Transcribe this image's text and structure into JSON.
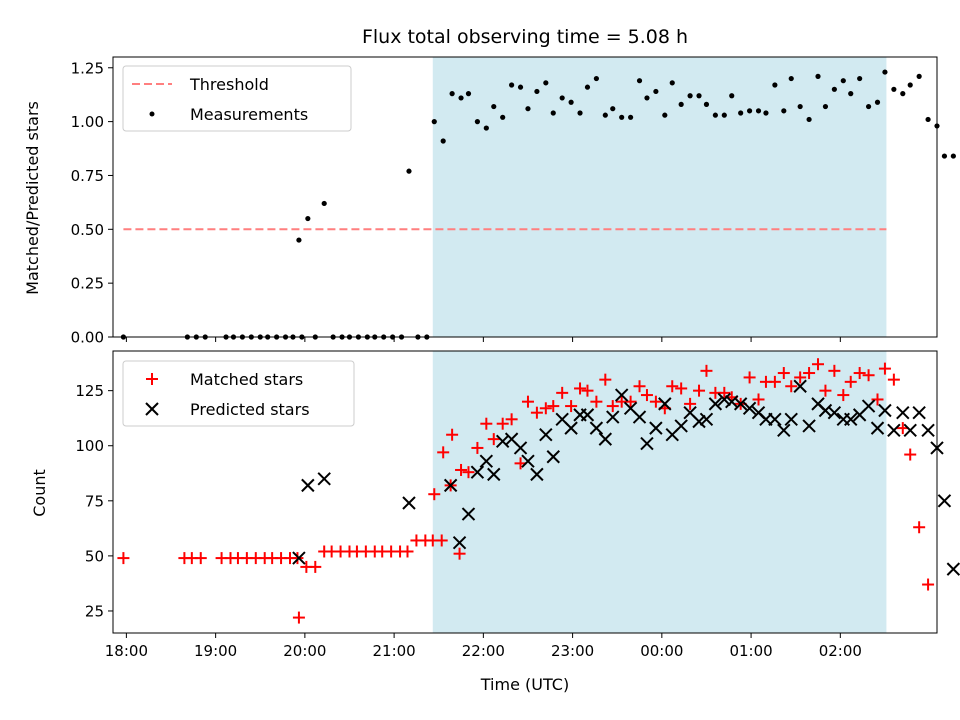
{
  "chart_data": [
    {
      "type": "scatter",
      "title": "Flux total observing time = 5.08 h",
      "xlabel": "",
      "ylabel": "Matched/Predicted stars",
      "x_range": [
        "17:51",
        "03:05"
      ],
      "ylim": [
        0,
        1.3
      ],
      "yticks": [
        "0.00",
        "0.25",
        "0.50",
        "0.75",
        "1.00",
        "1.25"
      ],
      "shaded_region": {
        "from": "21:26",
        "to": "02:31",
        "color": "#add8e6"
      },
      "legend_position": "top-left",
      "threshold": {
        "name": "Threshold",
        "value": 0.5,
        "from": "17:58",
        "to": "02:31",
        "color": "#ff7f7f"
      },
      "series": [
        {
          "name": "Measurements",
          "color": "#000000",
          "marker": "dot",
          "points": [
            [
              "17:58",
              0
            ],
            [
              "18:41",
              0
            ],
            [
              "18:47",
              0
            ],
            [
              "18:53",
              0
            ],
            [
              "19:07",
              0
            ],
            [
              "19:12",
              0
            ],
            [
              "19:18",
              0
            ],
            [
              "19:24",
              0
            ],
            [
              "19:30",
              0
            ],
            [
              "19:35",
              0
            ],
            [
              "19:41",
              0
            ],
            [
              "19:47",
              0
            ],
            [
              "19:52",
              0
            ],
            [
              "19:58",
              0
            ],
            [
              "19:56",
              0.45
            ],
            [
              "20:02",
              0.55
            ],
            [
              "20:07",
              0
            ],
            [
              "20:13",
              0.62
            ],
            [
              "20:19",
              0
            ],
            [
              "20:25",
              0
            ],
            [
              "20:30",
              0
            ],
            [
              "20:36",
              0
            ],
            [
              "20:42",
              0
            ],
            [
              "20:47",
              0
            ],
            [
              "20:53",
              0
            ],
            [
              "20:59",
              0
            ],
            [
              "21:05",
              0
            ],
            [
              "21:10",
              0.77
            ],
            [
              "21:16",
              0
            ],
            [
              "21:22",
              0
            ],
            [
              "21:27",
              1.0
            ],
            [
              "21:33",
              0.91
            ],
            [
              "21:39",
              1.13
            ],
            [
              "21:45",
              1.11
            ],
            [
              "21:50",
              1.13
            ],
            [
              "21:56",
              1.0
            ],
            [
              "22:02",
              0.97
            ],
            [
              "22:07",
              1.07
            ],
            [
              "22:13",
              1.02
            ],
            [
              "22:19",
              1.17
            ],
            [
              "22:25",
              1.16
            ],
            [
              "22:30",
              1.06
            ],
            [
              "22:36",
              1.14
            ],
            [
              "22:42",
              1.18
            ],
            [
              "22:47",
              1.04
            ],
            [
              "22:53",
              1.11
            ],
            [
              "22:59",
              1.09
            ],
            [
              "23:05",
              1.04
            ],
            [
              "23:10",
              1.16
            ],
            [
              "23:16",
              1.2
            ],
            [
              "23:22",
              1.03
            ],
            [
              "23:27",
              1.06
            ],
            [
              "23:33",
              1.02
            ],
            [
              "23:39",
              1.02
            ],
            [
              "23:45",
              1.19
            ],
            [
              "23:50",
              1.11
            ],
            [
              "23:56",
              1.14
            ],
            [
              "00:02",
              1.03
            ],
            [
              "00:07",
              1.18
            ],
            [
              "00:13",
              1.08
            ],
            [
              "00:19",
              1.12
            ],
            [
              "00:25",
              1.12
            ],
            [
              "00:30",
              1.08
            ],
            [
              "00:36",
              1.03
            ],
            [
              "00:42",
              1.03
            ],
            [
              "00:47",
              1.12
            ],
            [
              "00:53",
              1.04
            ],
            [
              "00:59",
              1.05
            ],
            [
              "01:05",
              1.05
            ],
            [
              "01:10",
              1.04
            ],
            [
              "01:16",
              1.17
            ],
            [
              "01:22",
              1.05
            ],
            [
              "01:27",
              1.2
            ],
            [
              "01:33",
              1.07
            ],
            [
              "01:39",
              1.01
            ],
            [
              "01:45",
              1.21
            ],
            [
              "01:50",
              1.07
            ],
            [
              "01:56",
              1.15
            ],
            [
              "02:02",
              1.19
            ],
            [
              "02:07",
              1.13
            ],
            [
              "02:13",
              1.2
            ],
            [
              "02:19",
              1.07
            ],
            [
              "02:25",
              1.09
            ],
            [
              "02:30",
              1.23
            ],
            [
              "02:36",
              1.15
            ],
            [
              "02:42",
              1.13
            ],
            [
              "02:47",
              1.17
            ],
            [
              "02:53",
              1.21
            ],
            [
              "02:59",
              1.01
            ],
            [
              "03:05",
              0.98
            ],
            [
              "03:10",
              0.84
            ],
            [
              "03:16",
              0.84
            ]
          ]
        }
      ]
    },
    {
      "type": "scatter",
      "title": "",
      "xlabel": "Time (UTC)",
      "ylabel": "Count",
      "x_range": [
        "17:51",
        "03:05"
      ],
      "ylim": [
        15,
        143
      ],
      "yticks": [
        "25",
        "50",
        "75",
        "100",
        "125"
      ],
      "xticks": [
        "18:00",
        "19:00",
        "20:00",
        "21:00",
        "22:00",
        "23:00",
        "00:00",
        "01:00",
        "02:00"
      ],
      "shaded_region": {
        "from": "21:26",
        "to": "02:31",
        "color": "#add8e6"
      },
      "legend_position": "top-left",
      "series": [
        {
          "name": "Matched stars",
          "color": "#ff0000",
          "marker": "plus",
          "points": [
            [
              "17:58",
              49
            ],
            [
              "18:39",
              49
            ],
            [
              "18:44",
              49
            ],
            [
              "18:50",
              49
            ],
            [
              "19:04",
              49
            ],
            [
              "19:10",
              49
            ],
            [
              "19:15",
              49
            ],
            [
              "19:21",
              49
            ],
            [
              "19:27",
              49
            ],
            [
              "19:33",
              49
            ],
            [
              "19:38",
              49
            ],
            [
              "19:44",
              49
            ],
            [
              "19:50",
              49
            ],
            [
              "19:55",
              49
            ],
            [
              "19:56",
              22
            ],
            [
              "20:01",
              45
            ],
            [
              "20:07",
              45
            ],
            [
              "20:13",
              52
            ],
            [
              "20:18",
              52
            ],
            [
              "20:24",
              52
            ],
            [
              "20:30",
              52
            ],
            [
              "20:35",
              52
            ],
            [
              "20:41",
              52
            ],
            [
              "20:47",
              52
            ],
            [
              "20:52",
              52
            ],
            [
              "20:58",
              52
            ],
            [
              "21:04",
              52
            ],
            [
              "21:09",
              52
            ],
            [
              "21:15",
              57
            ],
            [
              "21:21",
              57
            ],
            [
              "21:26",
              57
            ],
            [
              "21:32",
              57
            ],
            [
              "21:38",
              82
            ],
            [
              "21:44",
              51
            ],
            [
              "21:27",
              78
            ],
            [
              "21:33",
              97
            ],
            [
              "21:39",
              105
            ],
            [
              "21:45",
              89
            ],
            [
              "21:50",
              88
            ],
            [
              "21:56",
              99
            ],
            [
              "22:02",
              110
            ],
            [
              "22:07",
              103
            ],
            [
              "22:13",
              110
            ],
            [
              "22:19",
              112
            ],
            [
              "22:25",
              92
            ],
            [
              "22:30",
              120
            ],
            [
              "22:36",
              115
            ],
            [
              "22:42",
              117
            ],
            [
              "22:47",
              118
            ],
            [
              "22:53",
              124
            ],
            [
              "22:59",
              118
            ],
            [
              "23:05",
              126
            ],
            [
              "23:10",
              125
            ],
            [
              "23:16",
              120
            ],
            [
              "23:22",
              130
            ],
            [
              "23:27",
              118
            ],
            [
              "23:33",
              120
            ],
            [
              "23:39",
              120
            ],
            [
              "23:45",
              127
            ],
            [
              "23:50",
              123
            ],
            [
              "23:56",
              120
            ],
            [
              "00:02",
              117
            ],
            [
              "00:07",
              127
            ],
            [
              "00:13",
              126
            ],
            [
              "00:19",
              119
            ],
            [
              "00:25",
              125
            ],
            [
              "00:30",
              134
            ],
            [
              "00:36",
              124
            ],
            [
              "00:42",
              124
            ],
            [
              "00:47",
              122
            ],
            [
              "00:53",
              119
            ],
            [
              "00:59",
              131
            ],
            [
              "01:05",
              121
            ],
            [
              "01:10",
              129
            ],
            [
              "01:16",
              129
            ],
            [
              "01:22",
              133
            ],
            [
              "01:27",
              127
            ],
            [
              "01:33",
              131
            ],
            [
              "01:39",
              133
            ],
            [
              "01:45",
              137
            ],
            [
              "01:50",
              125
            ],
            [
              "01:56",
              134
            ],
            [
              "02:02",
              123
            ],
            [
              "02:07",
              129
            ],
            [
              "02:13",
              133
            ],
            [
              "02:19",
              132
            ],
            [
              "02:25",
              121
            ],
            [
              "02:30",
              135
            ],
            [
              "02:36",
              130
            ],
            [
              "02:42",
              108
            ],
            [
              "02:47",
              96
            ],
            [
              "02:53",
              63
            ],
            [
              "02:59",
              37
            ]
          ]
        },
        {
          "name": "Predicted stars",
          "color": "#000000",
          "marker": "x",
          "points": [
            [
              "19:56",
              49
            ],
            [
              "20:02",
              82
            ],
            [
              "20:13",
              85
            ],
            [
              "21:10",
              74
            ],
            [
              "21:38",
              82
            ],
            [
              "21:44",
              56
            ],
            [
              "21:50",
              69
            ],
            [
              "21:56",
              88
            ],
            [
              "22:02",
              93
            ],
            [
              "22:07",
              87
            ],
            [
              "22:13",
              102
            ],
            [
              "22:19",
              103
            ],
            [
              "22:25",
              99
            ],
            [
              "22:30",
              93
            ],
            [
              "22:36",
              87
            ],
            [
              "22:42",
              105
            ],
            [
              "22:47",
              95
            ],
            [
              "22:53",
              112
            ],
            [
              "22:59",
              108
            ],
            [
              "23:05",
              114
            ],
            [
              "23:10",
              114
            ],
            [
              "23:16",
              108
            ],
            [
              "23:22",
              103
            ],
            [
              "23:27",
              113
            ],
            [
              "23:33",
              123
            ],
            [
              "23:39",
              117
            ],
            [
              "23:45",
              113
            ],
            [
              "23:50",
              101
            ],
            [
              "23:56",
              108
            ],
            [
              "00:02",
              119
            ],
            [
              "00:07",
              105
            ],
            [
              "00:13",
              109
            ],
            [
              "00:19",
              115
            ],
            [
              "00:25",
              111
            ],
            [
              "00:30",
              112
            ],
            [
              "00:36",
              119
            ],
            [
              "00:42",
              121
            ],
            [
              "00:47",
              120
            ],
            [
              "00:53",
              119
            ],
            [
              "00:59",
              117
            ],
            [
              "01:05",
              115
            ],
            [
              "01:10",
              112
            ],
            [
              "01:16",
              112
            ],
            [
              "01:22",
              107
            ],
            [
              "01:27",
              112
            ],
            [
              "01:33",
              127
            ],
            [
              "01:39",
              109
            ],
            [
              "01:45",
              119
            ],
            [
              "01:50",
              116
            ],
            [
              "01:56",
              115
            ],
            [
              "02:02",
              112
            ],
            [
              "02:07",
              112
            ],
            [
              "02:13",
              114
            ],
            [
              "02:19",
              118
            ],
            [
              "02:25",
              108
            ],
            [
              "02:30",
              116
            ],
            [
              "02:36",
              107
            ],
            [
              "02:42",
              115
            ],
            [
              "02:47",
              107
            ],
            [
              "02:53",
              115
            ],
            [
              "02:59",
              107
            ],
            [
              "03:05",
              99
            ],
            [
              "03:10",
              75
            ],
            [
              "03:16",
              44
            ]
          ]
        }
      ]
    }
  ]
}
